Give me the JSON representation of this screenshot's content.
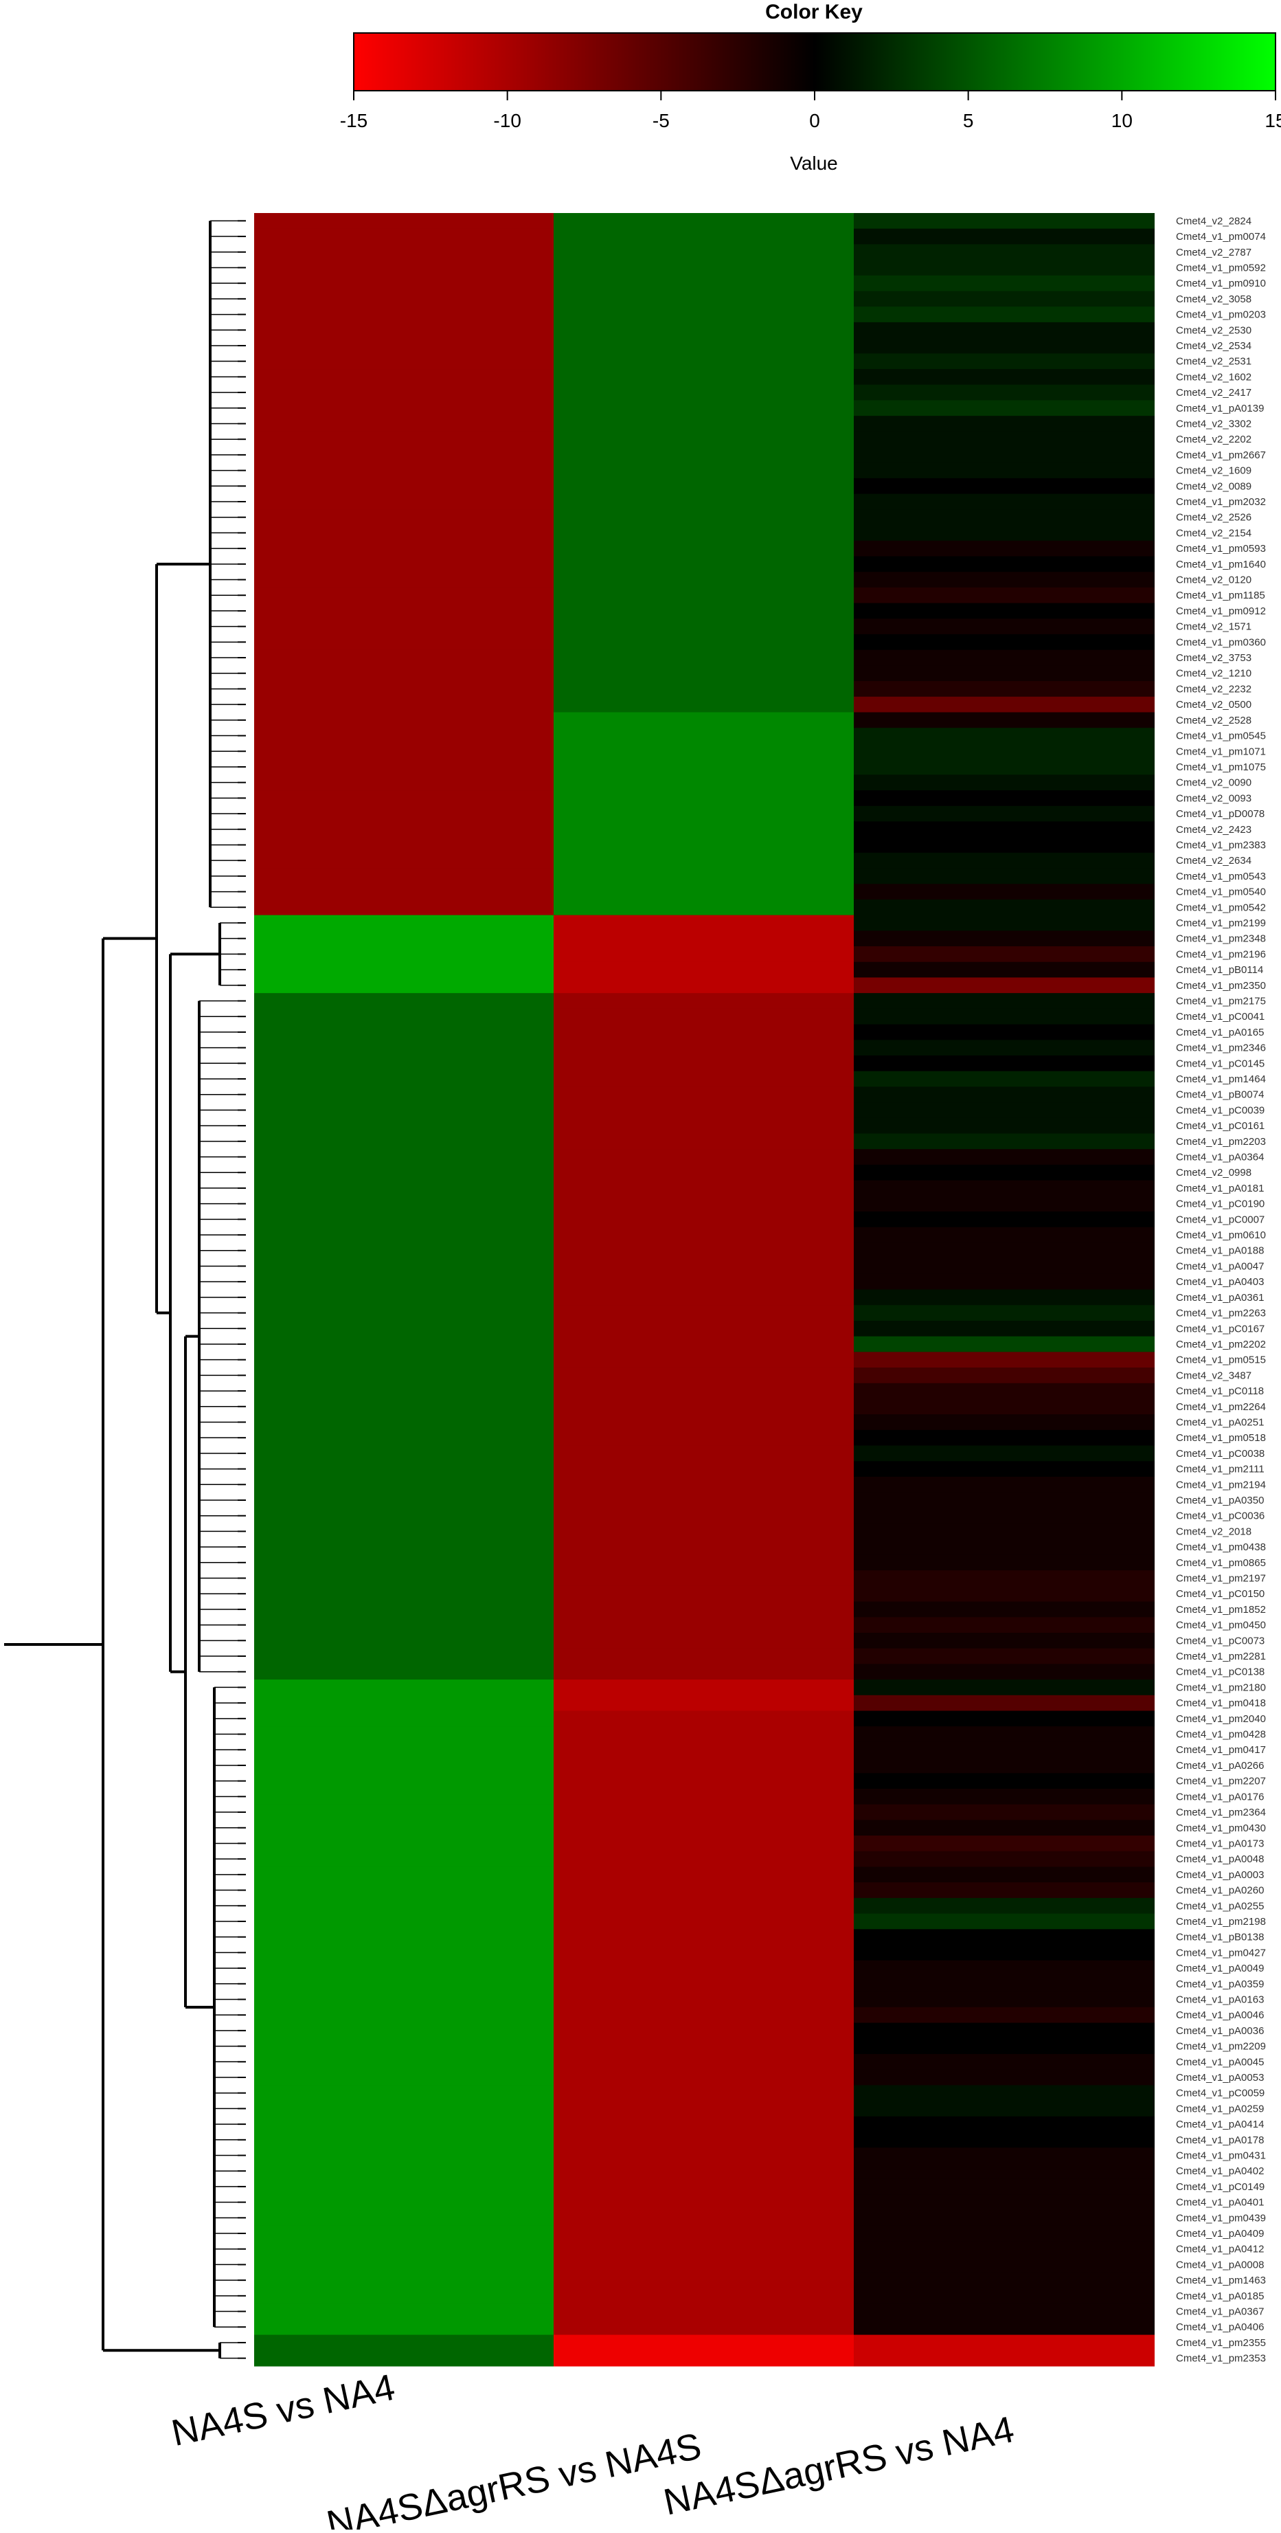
{
  "color_key": {
    "title": "Color Key",
    "axis_label": "Value",
    "ticks": [
      "-15",
      "-10",
      "-5",
      "0",
      "5",
      "10",
      "15"
    ],
    "range": [
      -15,
      15
    ],
    "colors": {
      "low": "#ff0000",
      "mid": "#000000",
      "high": "#00ff00"
    }
  },
  "chart_data": {
    "type": "heatmap",
    "title": "",
    "columns": [
      "NA4S vs NA4",
      "NA4SΔagrRS vs NA4S",
      "NA4SΔagrRS vs NA4"
    ],
    "row_labels": [
      "Cmet4_v2_2824",
      "Cmet4_v1_pm0074",
      "Cmet4_v2_2787",
      "Cmet4_v1_pm0592",
      "Cmet4_v1_pm0910",
      "Cmet4_v2_3058",
      "Cmet4_v1_pm0203",
      "Cmet4_v2_2530",
      "Cmet4_v2_2534",
      "Cmet4_v2_2531",
      "Cmet4_v2_1602",
      "Cmet4_v2_2417",
      "Cmet4_v1_pA0139",
      "Cmet4_v2_3302",
      "Cmet4_v2_2202",
      "Cmet4_v1_pm2667",
      "Cmet4_v2_1609",
      "Cmet4_v2_0089",
      "Cmet4_v1_pm2032",
      "Cmet4_v2_2526",
      "Cmet4_v2_2154",
      "Cmet4_v1_pm0593",
      "Cmet4_v1_pm1640",
      "Cmet4_v2_0120",
      "Cmet4_v1_pm1185",
      "Cmet4_v1_pm0912",
      "Cmet4_v2_1571",
      "Cmet4_v1_pm0360",
      "Cmet4_v2_3753",
      "Cmet4_v2_1210",
      "Cmet4_v2_2232",
      "Cmet4_v2_0500",
      "Cmet4_v2_2528",
      "Cmet4_v1_pm0545",
      "Cmet4_v1_pm1071",
      "Cmet4_v1_pm1075",
      "Cmet4_v2_0090",
      "Cmet4_v2_0093",
      "Cmet4_v1_pD0078",
      "Cmet4_v2_2423",
      "Cmet4_v1_pm2383",
      "Cmet4_v2_2634",
      "Cmet4_v1_pm0543",
      "Cmet4_v1_pm0540",
      "Cmet4_v1_pm0542",
      "Cmet4_v1_pm2199",
      "Cmet4_v1_pm2348",
      "Cmet4_v1_pm2196",
      "Cmet4_v1_pB0114",
      "Cmet4_v1_pm2350",
      "Cmet4_v1_pm2175",
      "Cmet4_v1_pC0041",
      "Cmet4_v1_pA0165",
      "Cmet4_v1_pm2346",
      "Cmet4_v1_pC0145",
      "Cmet4_v1_pm1464",
      "Cmet4_v1_pB0074",
      "Cmet4_v1_pC0039",
      "Cmet4_v1_pC0161",
      "Cmet4_v1_pm2203",
      "Cmet4_v1_pA0364",
      "Cmet4_v2_0998",
      "Cmet4_v1_pA0181",
      "Cmet4_v1_pC0190",
      "Cmet4_v1_pC0007",
      "Cmet4_v1_pm0610",
      "Cmet4_v1_pA0188",
      "Cmet4_v1_pA0047",
      "Cmet4_v1_pA0403",
      "Cmet4_v1_pA0361",
      "Cmet4_v1_pm2263",
      "Cmet4_v1_pC0167",
      "Cmet4_v1_pm2202",
      "Cmet4_v1_pm0515",
      "Cmet4_v2_3487",
      "Cmet4_v1_pC0118",
      "Cmet4_v1_pm2264",
      "Cmet4_v1_pA0251",
      "Cmet4_v1_pm0518",
      "Cmet4_v1_pC0038",
      "Cmet4_v1_pm2111",
      "Cmet4_v1_pm2194",
      "Cmet4_v1_pA0350",
      "Cmet4_v1_pC0036",
      "Cmet4_v2_2018",
      "Cmet4_v1_pm0438",
      "Cmet4_v1_pm0865",
      "Cmet4_v1_pm2197",
      "Cmet4_v1_pC0150",
      "Cmet4_v1_pm1852",
      "Cmet4_v1_pm0450",
      "Cmet4_v1_pC0073",
      "Cmet4_v1_pm2281",
      "Cmet4_v1_pC0138",
      "Cmet4_v1_pm2180",
      "Cmet4_v1_pm0418",
      "Cmet4_v1_pm2040",
      "Cmet4_v1_pm0428",
      "Cmet4_v1_pm0417",
      "Cmet4_v1_pA0266",
      "Cmet4_v1_pm2207",
      "Cmet4_v1_pA0176",
      "Cmet4_v1_pm2364",
      "Cmet4_v1_pm0430",
      "Cmet4_v1_pA0173",
      "Cmet4_v1_pA0048",
      "Cmet4_v1_pA0003",
      "Cmet4_v1_pA0260",
      "Cmet4_v1_pA0255",
      "Cmet4_v1_pm2198",
      "Cmet4_v1_pB0138",
      "Cmet4_v1_pm0427",
      "Cmet4_v1_pA0049",
      "Cmet4_v1_pA0359",
      "Cmet4_v1_pA0163",
      "Cmet4_v1_pA0046",
      "Cmet4_v1_pA0036",
      "Cmet4_v1_pm2209",
      "Cmet4_v1_pA0045",
      "Cmet4_v1_pA0053",
      "Cmet4_v1_pC0059",
      "Cmet4_v1_pA0259",
      "Cmet4_v1_pA0414",
      "Cmet4_v1_pA0178",
      "Cmet4_v1_pm0431",
      "Cmet4_v1_pA0402",
      "Cmet4_v1_pC0149",
      "Cmet4_v1_pA0401",
      "Cmet4_v1_pm0439",
      "Cmet4_v1_pA0409",
      "Cmet4_v1_pA0412",
      "Cmet4_v1_pA0008",
      "Cmet4_v1_pm1463",
      "Cmet4_v1_pA0185",
      "Cmet4_v1_pA0367",
      "Cmet4_v1_pA0406",
      "Cmet4_v1_pm2355",
      "Cmet4_v1_pm2353"
    ],
    "values": [
      [
        -9,
        6,
        3
      ],
      [
        -9,
        6,
        1
      ],
      [
        -9,
        6,
        2
      ],
      [
        -9,
        6,
        2
      ],
      [
        -9,
        6,
        3
      ],
      [
        -9,
        6,
        2
      ],
      [
        -9,
        6,
        3
      ],
      [
        -9,
        6,
        1
      ],
      [
        -9,
        6,
        1
      ],
      [
        -9,
        6,
        2
      ],
      [
        -9,
        6,
        1
      ],
      [
        -9,
        6,
        2
      ],
      [
        -9,
        6,
        3
      ],
      [
        -9,
        6,
        1
      ],
      [
        -9,
        6,
        1
      ],
      [
        -9,
        6,
        1
      ],
      [
        -9,
        6,
        1
      ],
      [
        -9,
        6,
        0
      ],
      [
        -9,
        6,
        1
      ],
      [
        -9,
        6,
        1
      ],
      [
        -9,
        6,
        1
      ],
      [
        -9,
        6,
        -1
      ],
      [
        -9,
        6,
        0
      ],
      [
        -9,
        6,
        -1
      ],
      [
        -9,
        6,
        -2
      ],
      [
        -9,
        6,
        0
      ],
      [
        -9,
        6,
        -1
      ],
      [
        -9,
        6,
        0
      ],
      [
        -9,
        6,
        -1
      ],
      [
        -9,
        6,
        -1
      ],
      [
        -9,
        6,
        -2
      ],
      [
        -9,
        6,
        -6
      ],
      [
        -9,
        8,
        -1
      ],
      [
        -9,
        8,
        2
      ],
      [
        -9,
        8,
        2
      ],
      [
        -9,
        8,
        2
      ],
      [
        -9,
        8,
        1
      ],
      [
        -9,
        8,
        0
      ],
      [
        -9,
        8,
        1
      ],
      [
        -9,
        8,
        0
      ],
      [
        -9,
        8,
        0
      ],
      [
        -9,
        8,
        1
      ],
      [
        -9,
        8,
        1
      ],
      [
        -9,
        8,
        -1
      ],
      [
        -9,
        8,
        1
      ],
      [
        10,
        -11,
        1
      ],
      [
        10,
        -11,
        -1
      ],
      [
        10,
        -11,
        -3
      ],
      [
        10,
        -11,
        -1
      ],
      [
        10,
        -11,
        -7
      ],
      [
        6,
        -9,
        1
      ],
      [
        6,
        -9,
        1
      ],
      [
        6,
        -9,
        0
      ],
      [
        6,
        -9,
        1
      ],
      [
        6,
        -9,
        0
      ],
      [
        6,
        -9,
        2
      ],
      [
        6,
        -9,
        1
      ],
      [
        6,
        -9,
        1
      ],
      [
        6,
        -9,
        1
      ],
      [
        6,
        -9,
        2
      ],
      [
        6,
        -9,
        -1
      ],
      [
        6,
        -9,
        0
      ],
      [
        6,
        -9,
        -1
      ],
      [
        6,
        -9,
        -1
      ],
      [
        6,
        -9,
        0
      ],
      [
        6,
        -9,
        -1
      ],
      [
        6,
        -9,
        -1
      ],
      [
        6,
        -9,
        -1
      ],
      [
        6,
        -9,
        -1
      ],
      [
        6,
        -9,
        1
      ],
      [
        6,
        -9,
        2
      ],
      [
        6,
        -9,
        1
      ],
      [
        6,
        -9,
        4
      ],
      [
        6,
        -9,
        -6
      ],
      [
        6,
        -9,
        -4
      ],
      [
        6,
        -9,
        -2
      ],
      [
        6,
        -9,
        -2
      ],
      [
        6,
        -9,
        -1
      ],
      [
        6,
        -9,
        0
      ],
      [
        6,
        -9,
        1
      ],
      [
        6,
        -9,
        0
      ],
      [
        6,
        -9,
        -1
      ],
      [
        6,
        -9,
        -1
      ],
      [
        6,
        -9,
        -1
      ],
      [
        6,
        -9,
        -1
      ],
      [
        6,
        -9,
        -1
      ],
      [
        6,
        -9,
        -1
      ],
      [
        6,
        -9,
        -2
      ],
      [
        6,
        -9,
        -2
      ],
      [
        6,
        -9,
        -1
      ],
      [
        6,
        -9,
        -2
      ],
      [
        6,
        -9,
        -1
      ],
      [
        6,
        -9,
        -2
      ],
      [
        6,
        -9,
        -1
      ],
      [
        9,
        -11,
        1
      ],
      [
        9,
        -11,
        -5
      ],
      [
        9,
        -10,
        0
      ],
      [
        9,
        -10,
        -1
      ],
      [
        9,
        -10,
        -1
      ],
      [
        9,
        -10,
        -1
      ],
      [
        9,
        -10,
        0
      ],
      [
        9,
        -10,
        -1
      ],
      [
        9,
        -10,
        -2
      ],
      [
        9,
        -10,
        -1
      ],
      [
        9,
        -10,
        -3
      ],
      [
        9,
        -10,
        -2
      ],
      [
        9,
        -10,
        -1
      ],
      [
        9,
        -10,
        -2
      ],
      [
        9,
        -10,
        2
      ],
      [
        9,
        -10,
        3
      ],
      [
        9,
        -10,
        0
      ],
      [
        9,
        -10,
        0
      ],
      [
        9,
        -10,
        -1
      ],
      [
        9,
        -10,
        -1
      ],
      [
        9,
        -10,
        -1
      ],
      [
        9,
        -10,
        -2
      ],
      [
        9,
        -10,
        0
      ],
      [
        9,
        -10,
        0
      ],
      [
        9,
        -10,
        -1
      ],
      [
        9,
        -10,
        -1
      ],
      [
        9,
        -10,
        1
      ],
      [
        9,
        -10,
        1
      ],
      [
        9,
        -10,
        0
      ],
      [
        9,
        -10,
        0
      ],
      [
        9,
        -10,
        -1
      ],
      [
        9,
        -10,
        -1
      ],
      [
        9,
        -10,
        -1
      ],
      [
        9,
        -10,
        -1
      ],
      [
        9,
        -10,
        -1
      ],
      [
        9,
        -10,
        -1
      ],
      [
        9,
        -10,
        -1
      ],
      [
        9,
        -10,
        -1
      ],
      [
        9,
        -10,
        -1
      ],
      [
        9,
        -10,
        -1
      ],
      [
        9,
        -10,
        -1
      ],
      [
        9,
        -10,
        -1
      ],
      [
        6,
        -14,
        -12
      ],
      [
        6,
        -14,
        -12
      ]
    ]
  }
}
